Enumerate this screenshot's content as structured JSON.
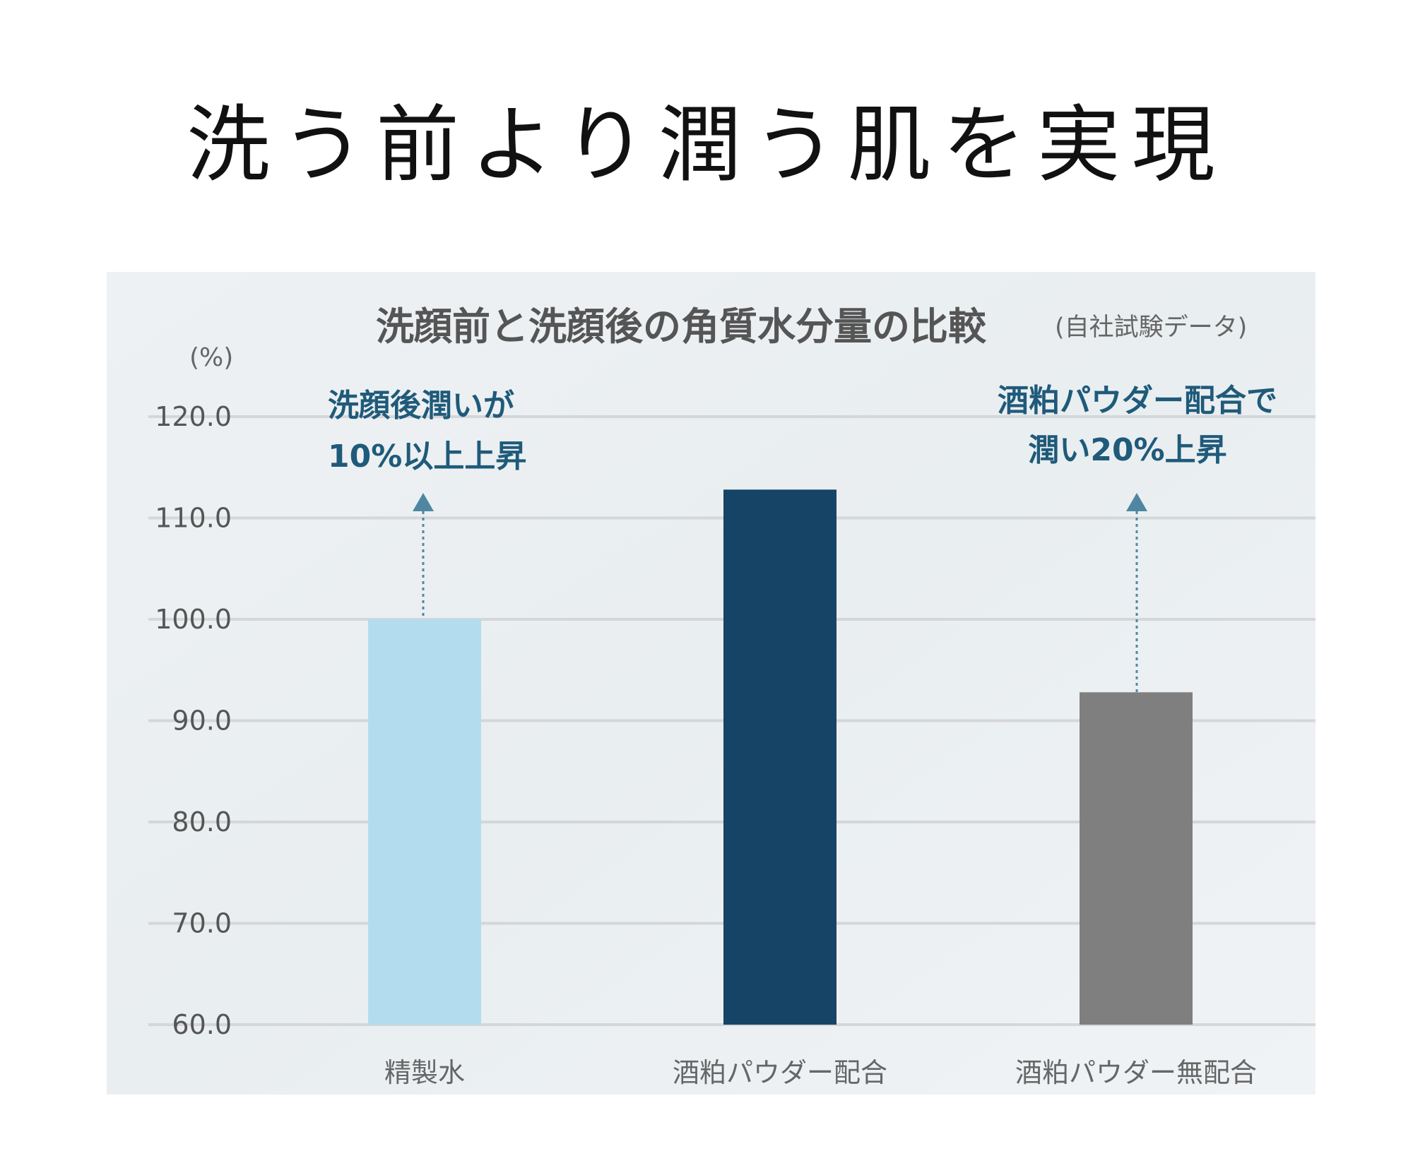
{
  "heading": "洗う前より潤う肌を実現",
  "colors": {
    "background": "#edf1f3",
    "grid": "#d4d6d8",
    "annotation": "#1f5a7a",
    "arrow": "#4f87a3"
  },
  "chart_data": {
    "type": "bar",
    "title": "洗顔前と洗顔後の角質水分量の比較",
    "subtitle": "(自社試験データ)",
    "ylabel": "(%)",
    "xlabel": "",
    "ylim": [
      60,
      120
    ],
    "yticks": [
      "120.0",
      "110.0",
      "100.0",
      "90.0",
      "80.0",
      "70.0",
      "60.0"
    ],
    "ytick_values": [
      120,
      110,
      100,
      90,
      80,
      70,
      60
    ],
    "grid": true,
    "categories": [
      "精製水",
      "酒粕パウダー配合",
      "酒粕パウダー無配合"
    ],
    "values": [
      100.0,
      112.8,
      92.8
    ],
    "bar_colors": [
      "#b3dcef",
      "#164466",
      "#7f7f80"
    ],
    "annotations": [
      {
        "lines": [
          "洗顔後潤いが",
          "10%以上上昇"
        ],
        "arrow_from": 100.0,
        "category": "精製水"
      },
      {
        "lines": [
          "酒粕パウダー配合で",
          "潤い20%上昇"
        ],
        "arrow_from": 92.8,
        "category": "酒粕パウダー無配合"
      }
    ]
  }
}
